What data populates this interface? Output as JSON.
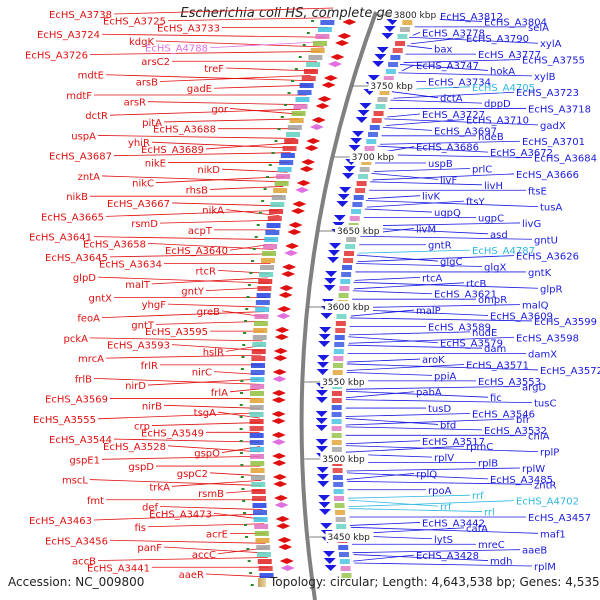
{
  "title": "Escherichia coli HS, complete genome",
  "accession_label": "Accession: NC_009800",
  "summary_label": "Topology: circular; Length: 4,643,538 bp; Genes: 4,535",
  "colors": {
    "left_strand": "#e01010",
    "right_strand": "#1a1ae0",
    "rna_left": "#e070e0",
    "rna_right": "#30b8e0",
    "ticks": "#2a8a2a",
    "backbone": "#808080"
  },
  "kbp_labels": [
    "3800 kbp",
    "3750 kbp",
    "3700 kbp",
    "3650 kbp",
    "3600 kbp",
    "3550 kbp",
    "3500 kbp",
    "3450 kbp"
  ],
  "left_genes": [
    "EcHS_A3738",
    "EcHS_A3725",
    "EcHS_A3733",
    "EcHS_A3724",
    "kdgK",
    "EcHS_A4788",
    "EcHS_A3726",
    "arsC2",
    "treF",
    "mdtE",
    "arsB",
    "gadE",
    "mdtF",
    "arsR",
    "gor",
    "dctR",
    "pitA",
    "EcHS_A3688",
    "uspA",
    "yhiR",
    "EcHS_A3689",
    "EcHS_A3687",
    "nikE",
    "nikD",
    "zntA",
    "nikC",
    "rhsB",
    "nikB",
    "EcHS_A3667",
    "nikA",
    "EcHS_A3665",
    "rsmD",
    "acpT",
    "EcHS_A3641",
    "EcHS_A3658",
    "EcHS_A3640",
    "EcHS_A3645",
    "EcHS_A3634",
    "rtcR",
    "glpD",
    "malT",
    "gntY",
    "gntX",
    "yhgF",
    "greB",
    "feoA",
    "gntT",
    "EcHS_A3595",
    "pckA",
    "EcHS_A3593",
    "hslR",
    "mrcA",
    "frlR",
    "nirC",
    "frlB",
    "nirD",
    "frlA",
    "EcHS_A3569",
    "nirB",
    "tsgA",
    "EcHS_A3555",
    "crp",
    "EcHS_A3549",
    "EcHS_A3544",
    "EcHS_A3528",
    "gspO",
    "gspE1",
    "gspD",
    "gspC2",
    "mscL",
    "trkA",
    "rsmB",
    "fmt",
    "def",
    "EcHS_A3473",
    "EcHS_A3463",
    "fis",
    "acrE",
    "EcHS_A3456",
    "panF",
    "accC",
    "accB",
    "EcHS_A3441",
    "aaeR"
  ],
  "right_genes": [
    "EcHS_A3812",
    "EcHS_A3804",
    "selA",
    "EcHS_A3778",
    "EcHS_A3790",
    "xylA",
    "bax",
    "EcHS_A3777",
    "EcHS_A3755",
    "EcHS_A3747",
    "hokA",
    "xylB",
    "EcHS_A3734",
    "EcHS_A4705",
    "EcHS_A3723",
    "dctA",
    "dppD",
    "EcHS_A3718",
    "EcHS_A3727",
    "EcHS_A3710",
    "gadX",
    "EcHS_A3697",
    "hdeB",
    "EcHS_A3701",
    "EcHS_A3686",
    "EcHS_A3672",
    "EcHS_A3684",
    "uspB",
    "prlC",
    "EcHS_A3666",
    "livF",
    "livH",
    "ftsE",
    "livK",
    "ftsY",
    "tusA",
    "ugpQ",
    "ugpC",
    "livG",
    "livM",
    "asd",
    "gntU",
    "gntR",
    "EcHS_A4787",
    "EcHS_A3626",
    "glgC",
    "glgX",
    "gntK",
    "rtcA",
    "rtcB",
    "glpR",
    "EcHS_A3621",
    "ompR",
    "malQ",
    "malP",
    "EcHS_A3609",
    "EcHS_A3599",
    "EcHS_A3589",
    "nudE",
    "EcHS_A3598",
    "EcHS_A3579",
    "dam",
    "damX",
    "aroK",
    "EcHS_A3571",
    "EcHS_A3572",
    "ppiA",
    "EcHS_A3553",
    "argD",
    "pabA",
    "fic",
    "tusC",
    "tusD",
    "EcHS_A3546",
    "bfr",
    "bfd",
    "EcHS_A3532",
    "chiA",
    "EcHS_A3517",
    "rpmC",
    "rplP",
    "rplV",
    "rplB",
    "rplW",
    "rplQ",
    "EcHS_A3485",
    "zntR",
    "rpoA",
    "rrf",
    "EcHS_A4702",
    "rrf",
    "rrl",
    "EcHS_A3457",
    "EcHS_A3442",
    "cafA",
    "maf1",
    "lytS",
    "mreC",
    "aaeB",
    "EcHS_A3428",
    "mdh",
    "rplM"
  ]
}
